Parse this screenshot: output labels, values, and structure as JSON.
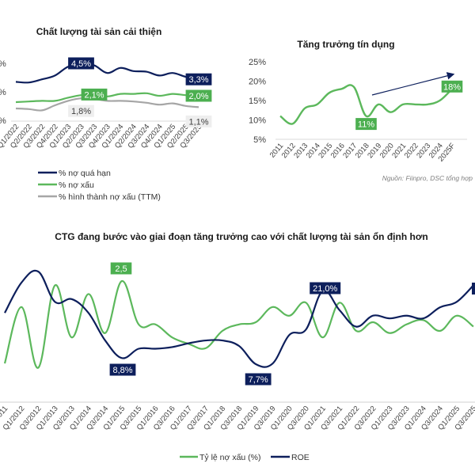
{
  "colors": {
    "navy": "#0d1f5c",
    "green": "#5cb85c",
    "gray": "#a6a6a6",
    "label_green": "#4caf50",
    "axis": "#d9d9d9",
    "label_gray_bg": "#eeeeee"
  },
  "chart_data": [
    {
      "type": "line",
      "title": "Chất lượng tài sản cải thiện",
      "categories": [
        "Q1/2022",
        "Q2/2022",
        "Q3/2022",
        "Q4/2022",
        "Q1/2023",
        "Q2/2023",
        "Q3/2023",
        "Q4/2023",
        "Q1/2024",
        "Q2/2024",
        "Q3/2024",
        "Q4/2024",
        "Q1/2025",
        "Q2/2025",
        "Q3/2025"
      ],
      "ylim": [
        0,
        6
      ],
      "series": [
        {
          "name": "% nợ quá hạn",
          "color": "navy",
          "values": [
            3.1,
            3.05,
            3.3,
            3.6,
            4.3,
            4.5,
            4.4,
            3.8,
            4.2,
            3.95,
            3.9,
            3.6,
            3.8,
            3.5,
            3.3
          ]
        },
        {
          "name": "% nợ xấu",
          "color": "green",
          "values": [
            1.5,
            1.55,
            1.6,
            1.6,
            1.85,
            2.05,
            2.1,
            1.95,
            2.15,
            2.15,
            2.2,
            2.0,
            2.15,
            2.05,
            2.0
          ]
        },
        {
          "name": "% hình thành nợ xấu (TTM)",
          "color": "gray",
          "values": [
            1.0,
            0.95,
            0.85,
            1.25,
            1.6,
            1.8,
            1.75,
            1.6,
            1.6,
            1.55,
            1.45,
            1.3,
            1.4,
            1.2,
            1.1
          ]
        }
      ],
      "annotations": [
        {
          "text": "4,5%",
          "series": 0,
          "index": 5,
          "style": "navy"
        },
        {
          "text": "3,3%",
          "series": 0,
          "index": 14,
          "style": "navy"
        },
        {
          "text": "2,1%",
          "series": 1,
          "index": 6,
          "style": "green"
        },
        {
          "text": "2,0%",
          "series": 1,
          "index": 14,
          "style": "green"
        },
        {
          "text": "1,8%",
          "series": 2,
          "index": 5,
          "style": "gray"
        },
        {
          "text": "1,1%",
          "series": 2,
          "index": 14,
          "style": "gray"
        }
      ],
      "legend_position": "bottom"
    },
    {
      "type": "line",
      "title": "Tăng trưởng tín dụng",
      "categories": [
        "2011",
        "2012",
        "2013",
        "2014",
        "2015",
        "2016",
        "2017",
        "2018",
        "2019",
        "2020",
        "2021",
        "2022",
        "2023",
        "2024",
        "2025F"
      ],
      "yticks": [
        "25%",
        "20%",
        "15%",
        "10%",
        "5%"
      ],
      "ylim": [
        5,
        25
      ],
      "series": [
        {
          "name": "Tăng trưởng tín dụng",
          "color": "green",
          "values": [
            11,
            9,
            13,
            14,
            17,
            18,
            18.5,
            11,
            14,
            12,
            14,
            14,
            14,
            15,
            18
          ]
        }
      ],
      "annotations": [
        {
          "text": "11%",
          "index": 7,
          "style": "green"
        },
        {
          "text": "18%",
          "index": 14,
          "style": "green"
        }
      ],
      "source": "Nguồn: Fiinpro, DSC tổng hợp"
    },
    {
      "type": "line",
      "title": "CTG đang bước vào giai đoạn tăng trưởng cao với chất lượng tài sản ổn định hơn",
      "categories": [
        "Q3/2011",
        "Q1/2012",
        "Q3/2012",
        "Q1/2013",
        "Q3/2013",
        "Q1/2014",
        "Q3/2014",
        "Q1/2015",
        "Q3/2015",
        "Q1/2016",
        "Q3/2016",
        "Q1/2017",
        "Q3/2017",
        "Q1/2018",
        "Q3/2018",
        "Q1/2019",
        "Q3/2019",
        "Q1/2020",
        "Q3/2020",
        "Q1/2021",
        "Q3/2021",
        "Q1/2022",
        "Q3/2022",
        "Q1/2023",
        "Q3/2023",
        "Q1/2024",
        "Q3/2024",
        "Q1/2025",
        "Q3/2025"
      ],
      "series": [
        {
          "name": "Tỷ lệ nợ xấu (%)",
          "color": "green",
          "values": [
            0.6,
            1.9,
            0.5,
            2.4,
            1.2,
            2.2,
            1.3,
            2.5,
            1.5,
            1.5,
            1.2,
            1.05,
            0.95,
            1.35,
            1.5,
            1.55,
            1.9,
            1.7,
            2.0,
            1.2,
            2.0,
            1.35,
            1.55,
            1.3,
            1.5,
            1.6,
            1.35,
            1.7,
            1.45
          ]
        },
        {
          "name": "ROE",
          "color": "navy",
          "values": [
            17.0,
            22.5,
            24.5,
            19.0,
            19.5,
            17.0,
            12.0,
            8.8,
            10.5,
            10.5,
            10.8,
            11.5,
            12.0,
            12.0,
            11.0,
            7.7,
            7.8,
            13.0,
            14.0,
            21.0,
            17.5,
            14.5,
            16.5,
            16.0,
            16.5,
            16.0,
            18.0,
            19.0,
            22.0
          ]
        }
      ],
      "annotations": [
        {
          "text": "2,5",
          "series": 0,
          "index": 7,
          "style": "green"
        },
        {
          "text": "8,8%",
          "series": 1,
          "index": 7,
          "style": "navy"
        },
        {
          "text": "7,7%",
          "series": 1,
          "index": 15,
          "style": "navy"
        },
        {
          "text": "21,0%",
          "series": 1,
          "index": 19,
          "style": "navy"
        }
      ],
      "legend_position": "bottom"
    }
  ]
}
